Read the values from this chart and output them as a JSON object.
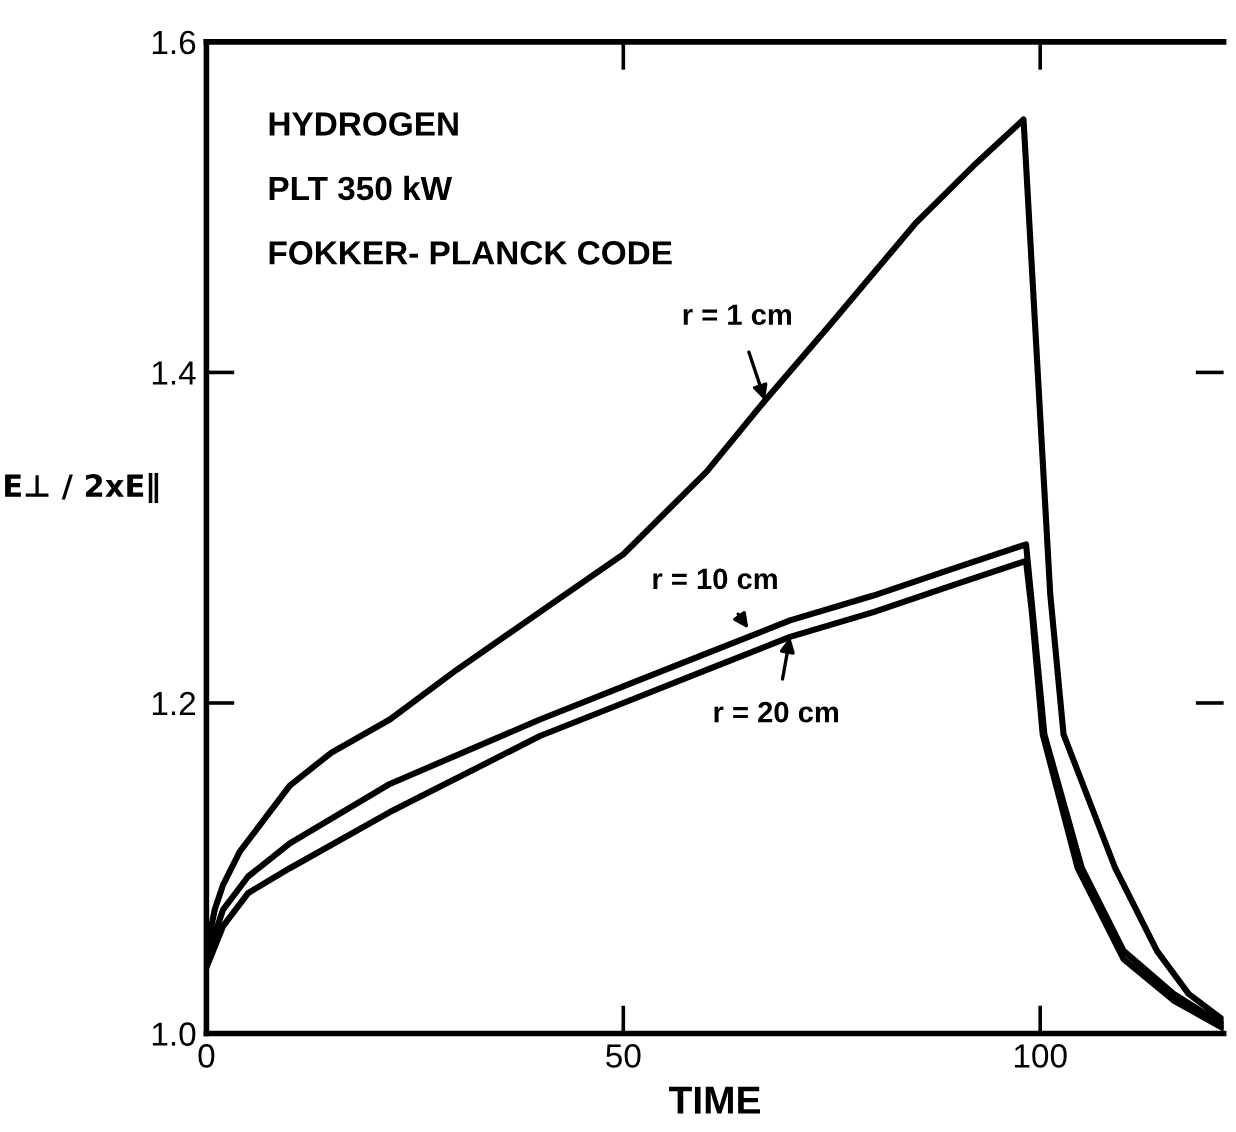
{
  "chart_data": {
    "type": "line",
    "xlabel": "TIME",
    "ylabel": "E⊥ / 2xE∥",
    "xlim": [
      0,
      122
    ],
    "ylim": [
      1.0,
      1.6
    ],
    "xticks": [
      0,
      50,
      100
    ],
    "yticks": [
      {
        "value": 1.0,
        "label": "1.0"
      },
      1.2,
      1.4,
      1.6
    ],
    "grid": false,
    "legend": false,
    "marker": "none",
    "line_style": "solid",
    "series": [
      {
        "color": "#000000",
        "x": [
          0,
          1,
          2,
          4,
          7,
          10,
          15,
          22,
          30,
          40,
          50,
          60,
          67,
          75,
          85,
          92,
          98,
          101.2,
          102.8,
          109,
          114,
          117.8,
          122
        ],
        "values": [
          1.05,
          1.075,
          1.09,
          1.11,
          1.13,
          1.15,
          1.17,
          1.19,
          1.22,
          1.255,
          1.29,
          1.34,
          1.383,
          1.43,
          1.49,
          1.525,
          1.553,
          1.266,
          1.181,
          1.1,
          1.05,
          1.024,
          1.008
        ]
      },
      {
        "color": "#000000",
        "x": [
          0,
          2,
          5,
          10,
          22,
          40,
          50,
          60,
          70,
          80,
          90,
          98.3,
          99,
          100.5,
          105,
          110,
          116,
          122
        ],
        "values": [
          1.045,
          1.075,
          1.095,
          1.115,
          1.151,
          1.19,
          1.21,
          1.23,
          1.25,
          1.265,
          1.282,
          1.296,
          1.26,
          1.181,
          1.1,
          1.05,
          1.024,
          1.005
        ]
      },
      {
        "color": "#000000",
        "x": [
          0,
          2,
          5,
          10,
          22,
          40,
          50,
          60,
          70,
          80,
          90,
          98.3,
          99,
          100.3,
          104.5,
          110,
          116,
          122
        ],
        "values": [
          1.04,
          1.065,
          1.085,
          1.1,
          1.134,
          1.18,
          1.2,
          1.22,
          1.24,
          1.255,
          1.272,
          1.286,
          1.255,
          1.181,
          1.1,
          1.045,
          1.02,
          1.003
        ]
      }
    ],
    "annotations": [
      "HYDROGEN",
      "PLT 350 kW",
      "FOKKER- PLANCK CODE",
      {
        "text": "r = 1 cm",
        "x": 67,
        "y": 1.383
      },
      {
        "text": "r = 10 cm",
        "x": 65,
        "y": 1.245
      },
      {
        "text": "r = 20 cm",
        "x": 70,
        "y": 1.24
      }
    ]
  }
}
